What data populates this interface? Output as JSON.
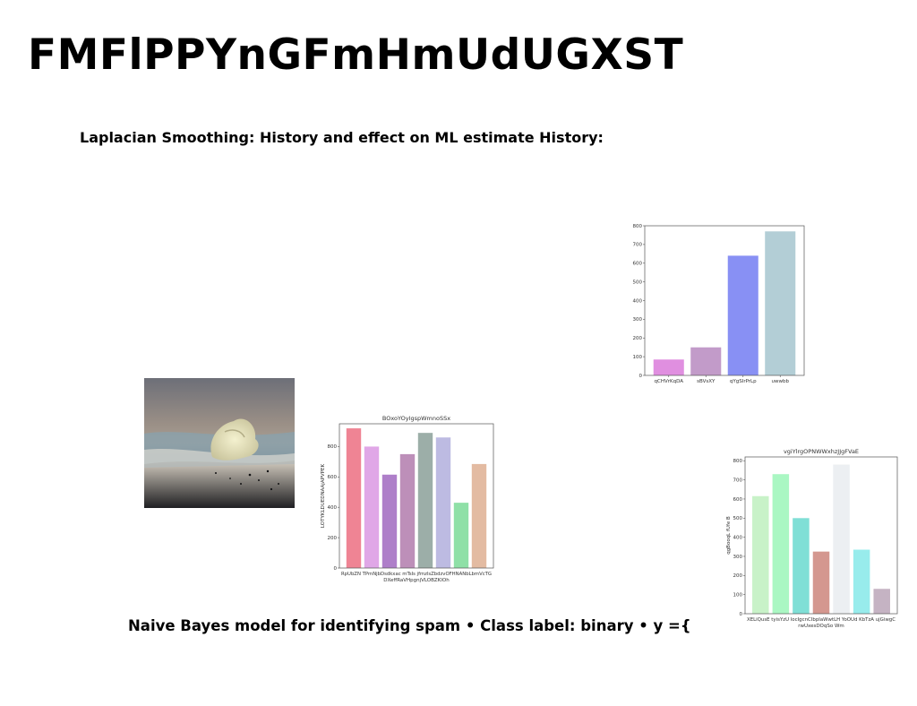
{
  "page": {
    "title": "FMFlPPYnGFmHmUdUGXST",
    "subtitle": "Laplacian Smoothing: History and effect on ML estimate History:",
    "footer": "Naive Bayes model for identifying spam • Class label: binary • y ={"
  },
  "photo": {
    "icon": "seashell-on-beach-photo"
  },
  "chart_data": [
    {
      "type": "bar",
      "title": "",
      "xlabel": "",
      "ylabel": "",
      "categories": [
        "qCHVrKqDA",
        "sBVsXY",
        "qYgSIrPrLp",
        "uwwbb"
      ],
      "values": [
        85,
        150,
        640,
        770
      ],
      "colors": [
        "#e08fe0",
        "#c29bc9",
        "#8890f4",
        "#b3ced6"
      ],
      "ylim": [
        0,
        800
      ],
      "yticks": [
        0,
        100,
        200,
        300,
        400,
        500,
        600,
        700,
        800
      ],
      "grid": false
    },
    {
      "type": "bar",
      "title": "BOxoYOyIgspWmnoSSx",
      "xlabel": "",
      "ylabel": "LOTYKLDUEDNAAjAPVPEK",
      "categories": [
        "RpUbZN",
        "TPmNj",
        "bDsdkxac DXeffRaVHpgnj",
        "mTsIs",
        "jfmzlsZbVLOBZKIOh",
        "dzvOFH",
        "NANbLbm",
        "VcTG"
      ],
      "xlabels_row1": "RpUbZN TPmNjbDsdkxac mTsIs  jfmzlsZbdzvOFHNANbLbmVcTG",
      "xlabels_row2": "DXeffRaVHpgnjVLOBZKIOh",
      "values": [
        920,
        800,
        615,
        750,
        890,
        860,
        430,
        685
      ],
      "colors": [
        "#ef8494",
        "#e0a7e7",
        "#ae7fc9",
        "#bd8fb9",
        "#9caea8",
        "#bdbbe2",
        "#8fe0a7",
        "#e3bba2"
      ],
      "ylim": [
        0,
        950
      ],
      "yticks": [
        0,
        200,
        400,
        600,
        800
      ],
      "grid": false
    },
    {
      "type": "bar",
      "title": "vgiYlrgOPNWWxhzJJgFVaE",
      "xlabel": "",
      "ylabel": "qgBooqL fUfe B",
      "categories": [
        "XELiQusE",
        "tyisYzU",
        "locIgcnCIbp",
        "aWwtLH",
        "YoOUd",
        "KbTzA",
        "ujGiwgC"
      ],
      "xlabels_row1": "XELiQusE  tyisYzU locIgcnCIbpIaWwtLH YoOUd   KbTzA   ujGiwgC",
      "xlabels_row2": "rwUxesDOqSo Wm",
      "values": [
        615,
        730,
        500,
        325,
        780,
        335,
        130
      ],
      "colors": [
        "#c8f2c8",
        "#aaf7c3",
        "#80dfd6",
        "#d4978f",
        "#eceff2",
        "#98ecec",
        "#c5b3c3"
      ],
      "ylim": [
        0,
        820
      ],
      "yticks": [
        0,
        100,
        200,
        300,
        400,
        500,
        600,
        700,
        800
      ],
      "grid": false
    }
  ]
}
